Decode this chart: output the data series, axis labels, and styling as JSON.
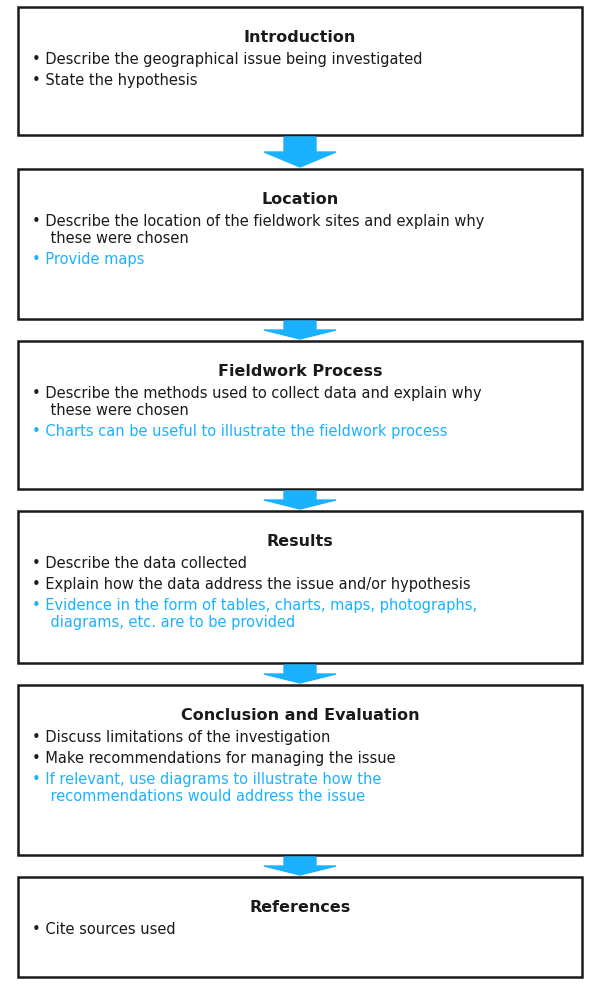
{
  "background_color": "#ffffff",
  "border_color": "#1a1a1a",
  "arrow_color": "#1ab2ff",
  "black_text_color": "#1a1a1a",
  "blue_text_color": "#1ab2ff",
  "sections": [
    {
      "title": "Introduction",
      "items": [
        {
          "text": "Describe the geographical issue being investigated",
          "color": "black",
          "wrap2": false
        },
        {
          "text": "State the hypothesis",
          "color": "black",
          "wrap2": false
        }
      ]
    },
    {
      "title": "Location",
      "items": [
        {
          "text": "Describe the location of the fieldwork sites and explain why\n    these were chosen",
          "color": "black",
          "wrap2": true
        },
        {
          "text": "Provide maps",
          "color": "blue",
          "wrap2": false
        }
      ]
    },
    {
      "title": "Fieldwork Process",
      "items": [
        {
          "text": "Describe the methods used to collect data and explain why\n    these were chosen",
          "color": "black",
          "wrap2": true
        },
        {
          "text": "Charts can be useful to illustrate the fieldwork process",
          "color": "blue",
          "wrap2": false
        }
      ]
    },
    {
      "title": "Results",
      "items": [
        {
          "text": "Describe the data collected",
          "color": "black",
          "wrap2": false
        },
        {
          "text": "Explain how the data address the issue and/or hypothesis",
          "color": "black",
          "wrap2": false
        },
        {
          "text": "Evidence in the form of tables, charts, maps, photographs,\n    diagrams, etc. are to be provided",
          "color": "blue",
          "wrap2": true
        }
      ]
    },
    {
      "title": "Conclusion and Evaluation",
      "items": [
        {
          "text": "Discuss limitations of the investigation",
          "color": "black",
          "wrap2": false
        },
        {
          "text": "Make recommendations for managing the issue",
          "color": "black",
          "wrap2": false
        },
        {
          "text": "If relevant, use diagrams to illustrate how the\n    recommendations would address the issue",
          "color": "blue",
          "wrap2": true
        }
      ]
    },
    {
      "title": "References",
      "items": [
        {
          "text": "Cite sources used",
          "color": "black",
          "wrap2": false
        }
      ]
    }
  ],
  "fig_width": 6.0,
  "fig_height": 9.87,
  "dpi": 100
}
